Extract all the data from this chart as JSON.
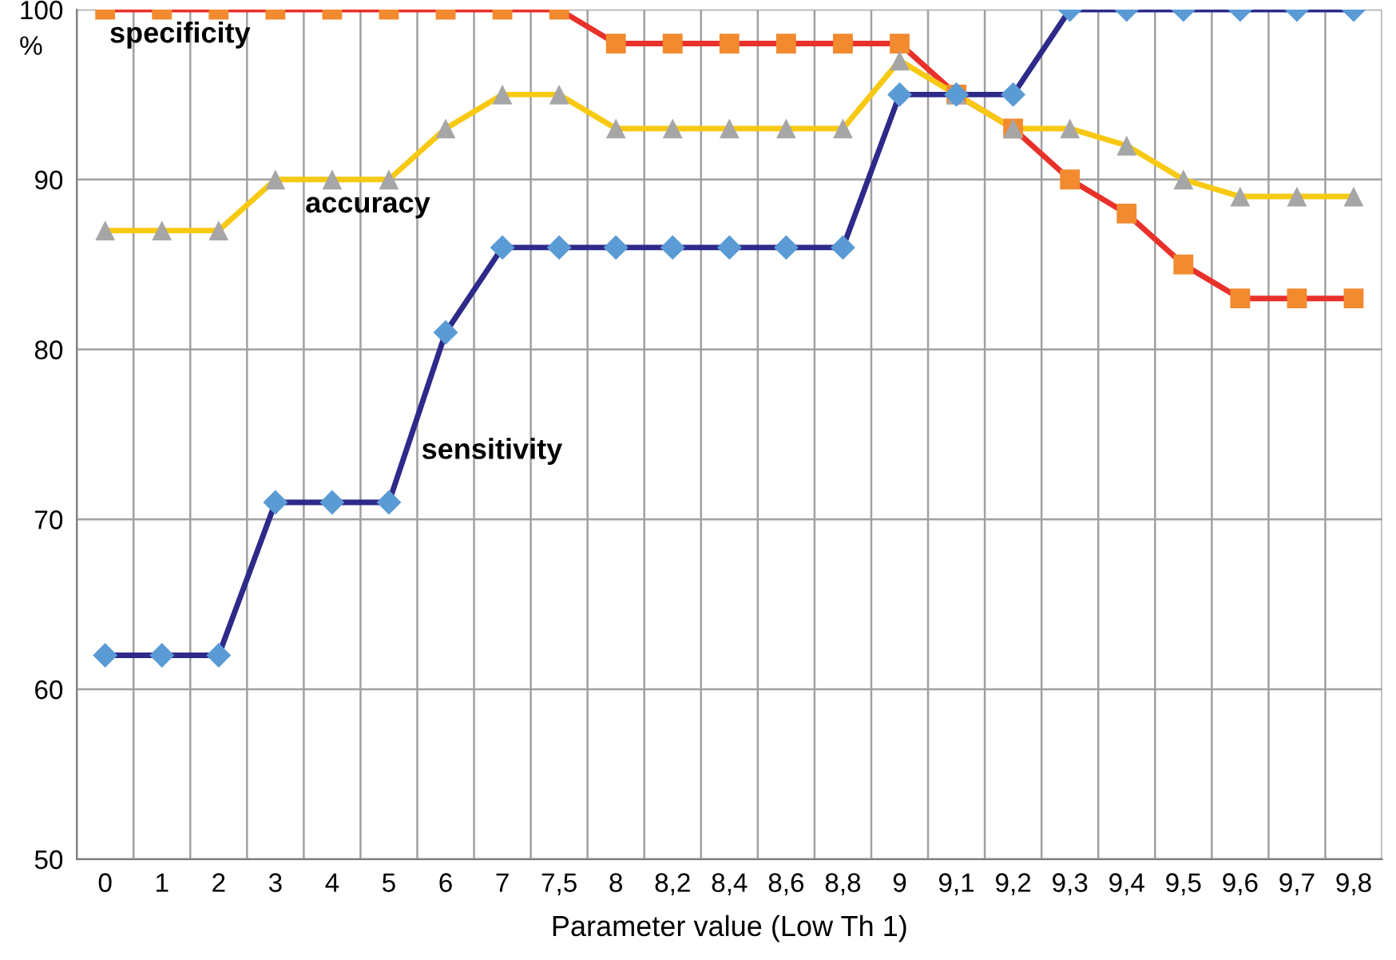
{
  "chart_data": {
    "type": "line",
    "xlabel": "Parameter value (Low Th 1)",
    "ylabel": "%",
    "categories": [
      "0",
      "1",
      "2",
      "3",
      "4",
      "5",
      "6",
      "7",
      "7,5",
      "8",
      "8,2",
      "8,4",
      "8,6",
      "8,8",
      "9",
      "9,1",
      "9,2",
      "9,3",
      "9,4",
      "9,5",
      "9,6",
      "9,7",
      "9,8"
    ],
    "series": [
      {
        "name": "specificity",
        "color": "#e8312a",
        "marker": "square",
        "colors": [
          "#f28a30",
          "#f28a30",
          "#f28a30",
          "#f28a30",
          "#f28a30",
          "#f28a30",
          "#f28a30",
          "#f28a30",
          "#f28a30",
          "#f28a30",
          "#f28a30",
          "#f28a30",
          "#f28a30",
          "#f28a30",
          "#f28a30",
          "#f28a30",
          "#f28a30",
          "#f28a30",
          "#f28a30",
          "#f28a30",
          "#f28a30",
          "#f28a30",
          "#f28a30"
        ],
        "values": [
          100,
          100,
          100,
          100,
          100,
          100,
          100,
          100,
          100,
          98,
          98,
          98,
          98,
          98,
          98,
          95,
          93,
          90,
          88,
          85,
          83,
          83,
          83
        ]
      },
      {
        "name": "accuracy",
        "color": "#f7c912",
        "marker": "triangle",
        "colors": [
          "#a6a6a6",
          "#a6a6a6",
          "#a6a6a6",
          "#a6a6a6",
          "#a6a6a6",
          "#a6a6a6",
          "#a6a6a6",
          "#a6a6a6",
          "#a6a6a6",
          "#a6a6a6",
          "#a6a6a6",
          "#a6a6a6",
          "#a6a6a6",
          "#a6a6a6",
          "#a6a6a6",
          "#a6a6a6",
          "#a6a6a6",
          "#a6a6a6",
          "#a6a6a6",
          "#a6a6a6",
          "#a6a6a6",
          "#a6a6a6",
          "#a6a6a6"
        ],
        "values": [
          87,
          87,
          87,
          90,
          90,
          90,
          93,
          95,
          95,
          93,
          93,
          93,
          93,
          93,
          97,
          95,
          93,
          93,
          92,
          90,
          89,
          89,
          89
        ]
      },
      {
        "name": "sensitivity",
        "color": "#2e2a8a",
        "marker": "diamond",
        "colors": [
          "#5b9bd5",
          "#5b9bd5",
          "#5b9bd5",
          "#5b9bd5",
          "#5b9bd5",
          "#5b9bd5",
          "#5b9bd5",
          "#5b9bd5",
          "#5b9bd5",
          "#5b9bd5",
          "#5b9bd5",
          "#5b9bd5",
          "#5b9bd5",
          "#5b9bd5",
          "#5b9bd5",
          "#5b9bd5",
          "#5b9bd5",
          "#5b9bd5",
          "#5b9bd5",
          "#5b9bd5",
          "#5b9bd5",
          "#5b9bd5",
          "#5b9bd5"
        ],
        "values": [
          62,
          62,
          62,
          71,
          71,
          71,
          81,
          86,
          86,
          86,
          86,
          86,
          86,
          86,
          95,
          95,
          95,
          100,
          100,
          100,
          100,
          100,
          100
        ]
      }
    ],
    "ylim": [
      50,
      100
    ],
    "yticks": [
      50,
      60,
      70,
      80,
      90,
      100
    ],
    "grid": true
  }
}
